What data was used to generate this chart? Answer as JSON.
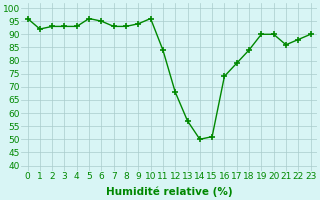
{
  "x": [
    0,
    1,
    2,
    3,
    4,
    5,
    6,
    7,
    8,
    9,
    10,
    11,
    12,
    13,
    14,
    15,
    16,
    17,
    18,
    19,
    20,
    21,
    22,
    23
  ],
  "y": [
    96,
    92,
    93,
    93,
    93,
    96,
    95,
    93,
    93,
    94,
    96,
    84,
    68,
    57,
    50,
    51,
    74,
    79,
    84,
    90,
    90,
    86,
    88,
    90
  ],
  "line_color": "#008800",
  "marker": "+",
  "marker_size": 4,
  "marker_lw": 1.2,
  "bg_color": "#d8f5f5",
  "grid_color": "#aacccc",
  "xlabel": "Humidité relative (%)",
  "xlabel_color": "#008800",
  "xlabel_fontsize": 7.5,
  "ylabel_ticks": [
    40,
    45,
    50,
    55,
    60,
    65,
    70,
    75,
    80,
    85,
    90,
    95,
    100
  ],
  "ylim": [
    38,
    102
  ],
  "xlim": [
    -0.5,
    23.5
  ],
  "tick_fontsize": 6.5,
  "tick_color": "#008800",
  "linewidth": 1.0
}
